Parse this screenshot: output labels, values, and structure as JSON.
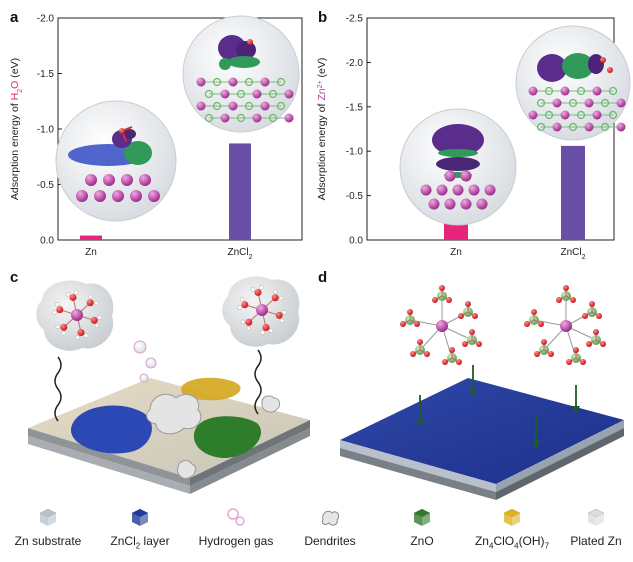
{
  "panels": {
    "a": {
      "letter": "a"
    },
    "b": {
      "letter": "b"
    },
    "c": {
      "letter": "c"
    },
    "d": {
      "letter": "d"
    }
  },
  "chart_data": [
    {
      "type": "bar",
      "panel": "a",
      "categories": [
        "Zn",
        "ZnCl2"
      ],
      "values": [
        -0.04,
        -0.87
      ],
      "ylabel_prefix": "Adsorption energy of ",
      "ylabel_species": "H2O",
      "ylabel_suffix": " (eV)",
      "ylim": [
        0.0,
        -2.0
      ],
      "yticks": [
        "0.0",
        "-0.5",
        "-1.0",
        "-1.5",
        "-2.0"
      ],
      "bar_colors": [
        "#e8247a",
        "#6a4fa6"
      ],
      "species_color": "#e8247a"
    },
    {
      "type": "bar",
      "panel": "b",
      "categories": [
        "Zn",
        "ZnCl2"
      ],
      "values": [
        -0.29,
        -1.06
      ],
      "ylabel_prefix": "Adsorption energy of ",
      "ylabel_species": "Zn2+",
      "ylabel_suffix": " (eV)",
      "ylim": [
        0.0,
        -2.5
      ],
      "yticks": [
        "0.0",
        "-0.5",
        "-1.0",
        "-1.5",
        "-2.0",
        "-2.5"
      ],
      "bar_colors": [
        "#e8247a",
        "#6a4fa6"
      ],
      "species_color": "#b0459a"
    }
  ],
  "legend": [
    {
      "name": "zn-substrate",
      "label": "Zn substrate",
      "color": "#b8c2cc"
    },
    {
      "name": "zncl2-layer",
      "label": "ZnCl2 layer",
      "color": "#1e3a9a"
    },
    {
      "name": "hydrogen-gas",
      "label": "Hydrogen gas",
      "color": "#e6a8d8"
    },
    {
      "name": "dendrites",
      "label": "Dendrites",
      "color": "#e6e6e6"
    },
    {
      "name": "zno",
      "label": "ZnO",
      "color": "#2f7a2a"
    },
    {
      "name": "zn4clo4oh7",
      "label": "Zn4ClO4(OH)7",
      "color": "#e0b21e"
    },
    {
      "name": "plated-zn",
      "label": "Plated Zn",
      "color": "#dcdcdc"
    }
  ]
}
